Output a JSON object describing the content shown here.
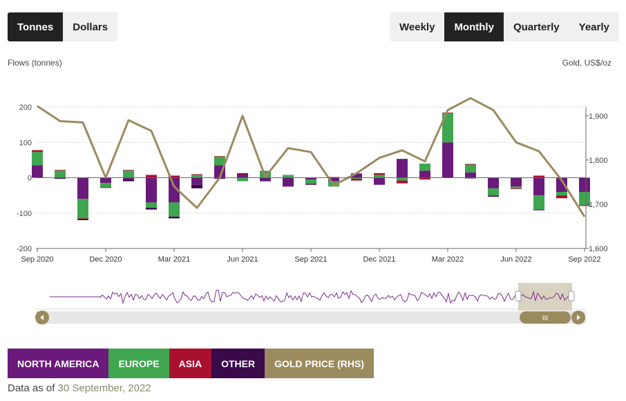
{
  "unit_toggle": {
    "items": [
      "Tonnes",
      "Dollars"
    ],
    "active": 0
  },
  "period_toggle": {
    "items": [
      "Weekly",
      "Monthly",
      "Quarterly",
      "Yearly"
    ],
    "active": 1
  },
  "colors": {
    "north_america": "#6a1a7a",
    "europe": "#3fa64f",
    "asia": "#a8102e",
    "other": "#3a0a4a",
    "gold": "#9a8a5e",
    "navigator_line": "#7a2a8a"
  },
  "chart_data": {
    "type": "bar",
    "ylabel": "Flows (tonnes)",
    "y2label": "Gold, US$/oz",
    "ylim": [
      -200,
      200
    ],
    "y2lim": [
      1600,
      1920
    ],
    "yticks": [
      -200,
      -100,
      0,
      100,
      200
    ],
    "y2ticks": [
      1600,
      1700,
      1800,
      1900
    ],
    "y2tick_labels": [
      "1,600",
      "1,700",
      "1,800",
      "1,900"
    ],
    "xtick_labels": [
      "Sep 2020",
      "Dec 2020",
      "Mar 2021",
      "Jun 2021",
      "Sep 2021",
      "Dec 2021",
      "Mar 2022",
      "Jun 2022",
      "Sep 2022"
    ],
    "xtick_index": [
      0,
      3,
      6,
      9,
      12,
      15,
      18,
      21,
      24
    ],
    "categories": [
      "Sep 2020",
      "Oct 2020",
      "Nov 2020",
      "Dec 2020",
      "Jan 2021",
      "Feb 2021",
      "Mar 2021",
      "Apr 2021",
      "May 2021",
      "Jun 2021",
      "Jul 2021",
      "Aug 2021",
      "Sep 2021",
      "Oct 2021",
      "Nov 2021",
      "Dec 2021",
      "Jan 2022",
      "Feb 2022",
      "Mar 2022",
      "Apr 2022",
      "May 2022",
      "Jun 2022",
      "Jul 2022",
      "Aug 2022",
      "Sep 2022"
    ],
    "series": [
      {
        "name": "NORTH AMERICA",
        "key": "north_america",
        "values": [
          35,
          0,
          -60,
          -15,
          -5,
          -70,
          -70,
          -20,
          35,
          10,
          -8,
          -25,
          -5,
          -10,
          10,
          -20,
          50,
          20,
          100,
          15,
          -30,
          -25,
          -50,
          -40,
          -40
        ]
      },
      {
        "name": "EUROPE",
        "key": "europe",
        "values": [
          38,
          20,
          -55,
          -12,
          20,
          -15,
          -40,
          8,
          25,
          -10,
          18,
          8,
          -12,
          -15,
          -3,
          8,
          -8,
          20,
          82,
          22,
          -20,
          -5,
          -40,
          -10,
          -38
        ]
      },
      {
        "name": "ASIA",
        "key": "asia",
        "values": [
          5,
          2,
          -2,
          -2,
          2,
          8,
          6,
          2,
          1,
          1,
          1,
          0,
          -1,
          2,
          -5,
          5,
          -8,
          -5,
          2,
          2,
          -2,
          -2,
          6,
          -8,
          -2
        ]
      },
      {
        "name": "OTHER",
        "key": "other",
        "values": [
          0,
          -3,
          -3,
          0,
          -5,
          -5,
          -5,
          -10,
          -3,
          2,
          -2,
          0,
          -2,
          0,
          2,
          0,
          3,
          0,
          0,
          -2,
          -2,
          0,
          -2,
          0,
          0
        ]
      }
    ],
    "gold_price": {
      "name": "GOLD PRICE (RHS)",
      "values": [
        1922,
        1888,
        1885,
        1760,
        1890,
        1866,
        1740,
        1692,
        1760,
        1900,
        1762,
        1827,
        1818,
        1743,
        1770,
        1805,
        1822,
        1797,
        1913,
        1940,
        1913,
        1840,
        1820,
        1754,
        1672
      ]
    }
  },
  "legend": [
    "NORTH AMERICA",
    "EUROPE",
    "ASIA",
    "OTHER",
    "GOLD PRICE (RHS)"
  ],
  "navigator": {
    "scroll_left_icon": "chevron-left-icon",
    "scroll_right_icon": "chevron-right-icon",
    "grip_icon": "grip-icon"
  },
  "footer": {
    "prefix": "Data as of",
    "date": "30 September, 2022"
  }
}
